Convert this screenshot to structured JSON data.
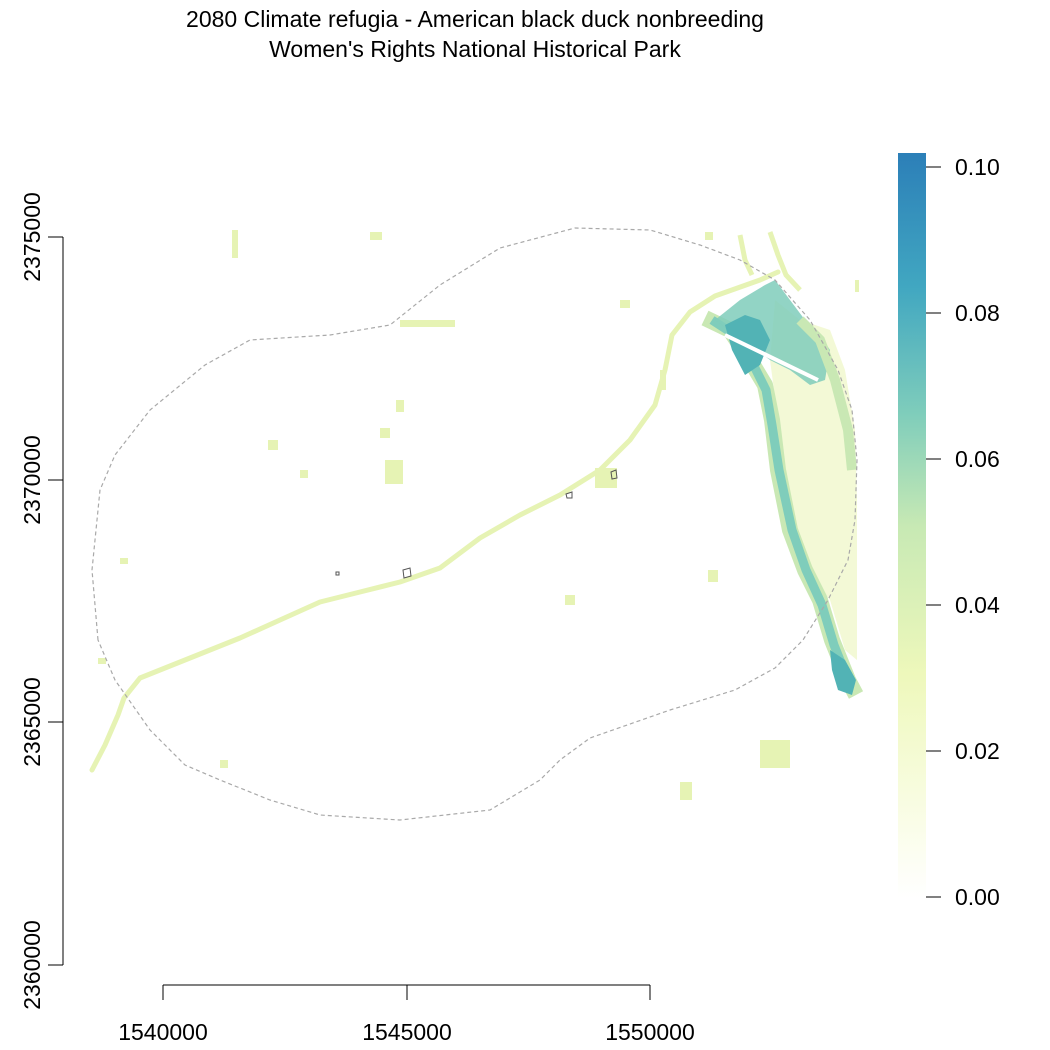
{
  "title": {
    "line1": "2080 Climate refugia - American black duck nonbreeding",
    "line2": "Women's Rights National Historical Park"
  },
  "x_axis": {
    "ticks": [
      "1540000",
      "1545000",
      "1550000"
    ]
  },
  "y_axis": {
    "ticks": [
      "2375000",
      "2370000",
      "2365000",
      "2360000"
    ]
  },
  "legend": {
    "ticks": [
      "0.10",
      "0.08",
      "0.06",
      "0.04",
      "0.02",
      "0.00"
    ],
    "colors": [
      "#ffffff",
      "#f7fbe0",
      "#edf8b1",
      "#c7e9b4",
      "#7fcdbb",
      "#41b6c4",
      "#2c7fb8"
    ]
  },
  "map_colors": {
    "low": "#f3f9d6",
    "light": "#e6f3b4",
    "mid": "#c9e8b4",
    "high": "#7fcdbb",
    "peak": "#52b3b5",
    "boundary": "#a9a9a9"
  }
}
